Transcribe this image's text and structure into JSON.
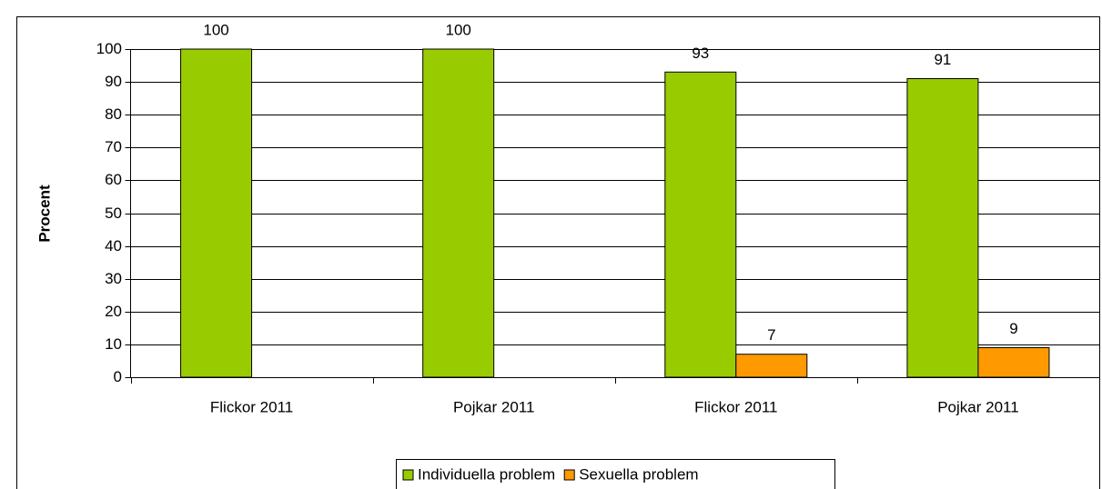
{
  "chart_data": {
    "type": "bar",
    "y_label": "Procent",
    "categories": [
      "Flickor 2011",
      "Pojkar 2011",
      "Flickor 2011",
      "Pojkar 2011"
    ],
    "series": [
      {
        "name": "Individuella problem",
        "color": "#99cc00",
        "values": [
          100,
          100,
          93,
          91
        ]
      },
      {
        "name": "Sexuella problem",
        "color": "#ff9900",
        "values": [
          null,
          null,
          7,
          9
        ]
      }
    ],
    "ylim": [
      0,
      100
    ],
    "yticks": [
      0,
      10,
      20,
      30,
      40,
      50,
      60,
      70,
      80,
      90,
      100
    ],
    "grid": true,
    "legend": "bottom"
  }
}
